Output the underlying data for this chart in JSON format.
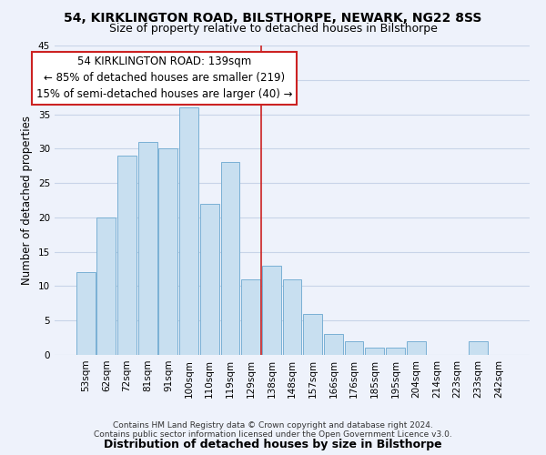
{
  "title": "54, KIRKLINGTON ROAD, BILSTHORPE, NEWARK, NG22 8SS",
  "subtitle": "Size of property relative to detached houses in Bilsthorpe",
  "xlabel": "Distribution of detached houses by size in Bilsthorpe",
  "ylabel": "Number of detached properties",
  "bin_labels": [
    "53sqm",
    "62sqm",
    "72sqm",
    "81sqm",
    "91sqm",
    "100sqm",
    "110sqm",
    "119sqm",
    "129sqm",
    "138sqm",
    "148sqm",
    "157sqm",
    "166sqm",
    "176sqm",
    "185sqm",
    "195sqm",
    "204sqm",
    "214sqm",
    "223sqm",
    "233sqm",
    "242sqm"
  ],
  "bar_values": [
    12,
    20,
    29,
    31,
    30,
    36,
    22,
    28,
    11,
    13,
    11,
    6,
    3,
    2,
    1,
    1,
    2,
    0,
    0,
    2,
    0
  ],
  "bar_color": "#c8dff0",
  "bar_edge_color": "#7ab0d4",
  "ylim": [
    0,
    45
  ],
  "yticks": [
    0,
    5,
    10,
    15,
    20,
    25,
    30,
    35,
    40,
    45
  ],
  "annotation_title": "54 KIRKLINGTON ROAD: 139sqm",
  "annotation_line1": "← 85% of detached houses are smaller (219)",
  "annotation_line2": "15% of semi-detached houses are larger (40) →",
  "footnote1": "Contains HM Land Registry data © Crown copyright and database right 2024.",
  "footnote2": "Contains public sector information licensed under the Open Government Licence v3.0.",
  "vline_index": 8.5,
  "background_color": "#eef2fb",
  "grid_color": "#c8d4e8",
  "vline_color": "#cc2222",
  "ann_box_color": "#cc2222",
  "title_fontsize": 10,
  "subtitle_fontsize": 9,
  "ylabel_fontsize": 8.5,
  "xlabel_fontsize": 9,
  "tick_fontsize": 7.5,
  "ann_fontsize": 8.5,
  "footnote_fontsize": 6.5
}
